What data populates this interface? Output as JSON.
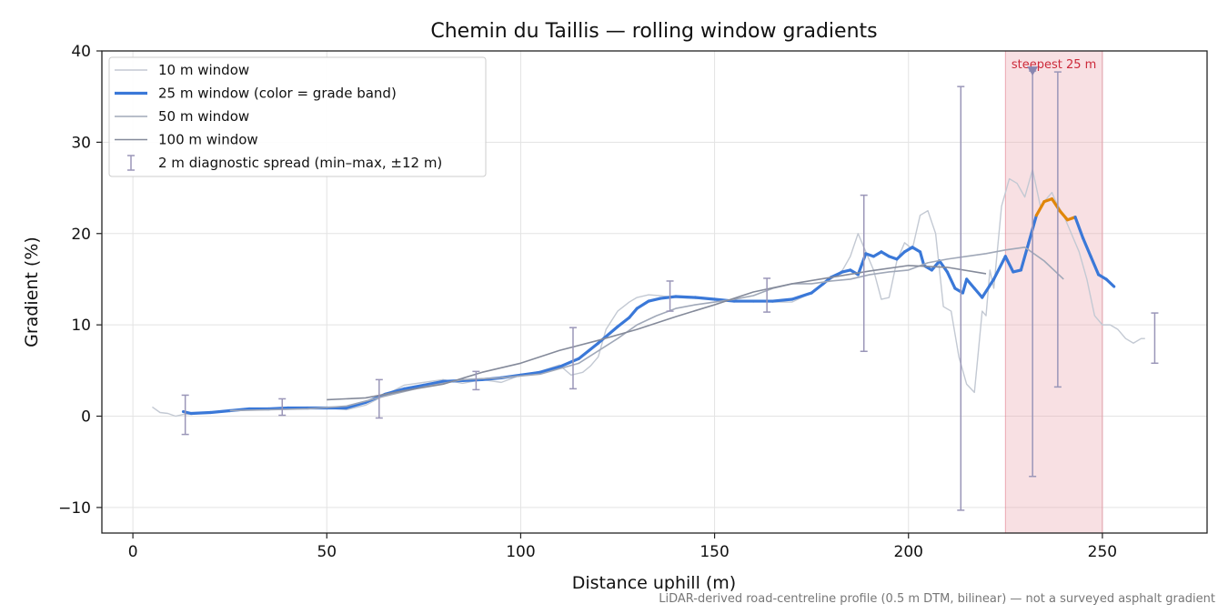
{
  "chart_data": {
    "type": "line",
    "title": "Chemin du Taillis — rolling window gradients",
    "xlabel": "Distance uphill (m)",
    "ylabel": "Gradient (%)",
    "xlim": [
      -8,
      277
    ],
    "ylim": [
      -12.8,
      40
    ],
    "xticks": [
      0,
      50,
      100,
      150,
      200,
      250
    ],
    "yticks": [
      -10,
      0,
      10,
      20,
      30,
      40
    ],
    "xtick_labels": [
      "0",
      "50",
      "100",
      "150",
      "200",
      "250"
    ],
    "ytick_labels": [
      "−10",
      "0",
      "10",
      "20",
      "30",
      "40"
    ],
    "grid": true,
    "legend_position": "top-left",
    "highlight": {
      "x_start": 225,
      "x_end": 250,
      "label": "steepest 25 m",
      "marker_x": 232,
      "marker_y": 37.8,
      "color": "#e8a0a8"
    },
    "series": [
      {
        "name": "10 m window",
        "color": "#c3c9d3",
        "x": [
          5,
          7,
          9,
          11,
          13,
          15,
          20,
          25,
          30,
          35,
          40,
          45,
          50,
          55,
          60,
          65,
          70,
          75,
          80,
          85,
          90,
          95,
          100,
          105,
          110,
          113,
          116,
          118,
          120,
          122,
          125,
          128,
          130,
          133,
          136,
          140,
          145,
          150,
          155,
          160,
          165,
          170,
          175,
          178,
          180,
          183,
          185,
          187,
          189,
          191,
          193,
          195,
          197,
          199,
          201,
          203,
          205,
          207,
          209,
          211,
          213,
          215,
          217,
          218,
          219,
          220,
          221,
          222,
          224,
          226,
          228,
          230,
          232,
          234,
          236,
          237,
          238,
          240,
          242,
          244,
          246,
          248,
          250,
          252,
          254,
          256,
          258,
          260,
          261
        ],
        "values": [
          1.0,
          0.4,
          0.3,
          0,
          0.2,
          0.2,
          0.4,
          0.6,
          0.8,
          0.7,
          0.9,
          0.8,
          0.9,
          0.7,
          1.2,
          2.3,
          3.4,
          3.7,
          4.0,
          3.6,
          4.0,
          3.7,
          4.5,
          4.9,
          5.6,
          4.5,
          4.8,
          5.5,
          6.5,
          9.5,
          11.5,
          12.5,
          13.0,
          13.3,
          13.2,
          13.0,
          12.9,
          12.8,
          12.6,
          12.6,
          12.5,
          12.5,
          13.5,
          14.5,
          15.0,
          16.0,
          17.5,
          20.0,
          18.0,
          16.0,
          12.8,
          13.0,
          17.0,
          19.0,
          18.3,
          22.0,
          22.5,
          20.0,
          12.0,
          11.5,
          6.5,
          3.5,
          2.6,
          7.0,
          11.5,
          11.0,
          16.0,
          14.0,
          23.0,
          26.0,
          25.5,
          24.0,
          27.0,
          23.0,
          24.0,
          24.5,
          23.5,
          22.0,
          20.0,
          18.0,
          15.0,
          11.0,
          10.0,
          10.0,
          9.5,
          8.5,
          8.0,
          8.5,
          8.5
        ]
      },
      {
        "name": "25 m window (color = grade band)",
        "color": "#3a78d8",
        "steep_color": "#e0860a",
        "steep_threshold": 20,
        "x": [
          13,
          15,
          20,
          25,
          30,
          35,
          40,
          45,
          50,
          55,
          60,
          65,
          70,
          75,
          80,
          85,
          90,
          95,
          100,
          105,
          110,
          115,
          120,
          125,
          128,
          130,
          133,
          136,
          140,
          145,
          150,
          155,
          160,
          165,
          170,
          175,
          178,
          180,
          183,
          185,
          187,
          189,
          191,
          193,
          195,
          197,
          199,
          201,
          203,
          204,
          206,
          208,
          210,
          212,
          214,
          215,
          217,
          219,
          222,
          225,
          227,
          229,
          231,
          233,
          235,
          237,
          239,
          241,
          243,
          245,
          247,
          249,
          251,
          253
        ],
        "values": [
          0.5,
          0.3,
          0.4,
          0.6,
          0.8,
          0.8,
          0.9,
          0.9,
          0.9,
          0.9,
          1.5,
          2.4,
          3.0,
          3.4,
          3.8,
          3.9,
          4.0,
          4.2,
          4.5,
          4.8,
          5.4,
          6.3,
          8.0,
          9.8,
          10.8,
          11.8,
          12.6,
          12.9,
          13.1,
          13.0,
          12.8,
          12.6,
          12.6,
          12.6,
          12.8,
          13.5,
          14.5,
          15.2,
          15.8,
          16.0,
          15.5,
          17.8,
          17.5,
          18.0,
          17.5,
          17.2,
          18.0,
          18.5,
          18.0,
          16.5,
          16.0,
          17.0,
          15.8,
          14.0,
          13.5,
          15.0,
          14.0,
          13.0,
          15.0,
          17.5,
          15.8,
          16.0,
          19.0,
          22.0,
          23.5,
          23.8,
          22.5,
          21.5,
          21.8,
          19.5,
          17.5,
          15.5,
          15.0,
          14.2
        ]
      },
      {
        "name": "50 m window",
        "color": "#a0a8b8",
        "x": [
          25,
          35,
          45,
          55,
          65,
          75,
          85,
          95,
          105,
          115,
          125,
          130,
          135,
          140,
          145,
          150,
          155,
          160,
          165,
          170,
          175,
          180,
          185,
          190,
          195,
          200,
          205,
          210,
          215,
          220,
          225,
          230,
          235,
          240
        ],
        "values": [
          0.6,
          0.7,
          0.8,
          1.1,
          2.2,
          3.2,
          4.0,
          4.2,
          4.6,
          5.8,
          8.5,
          10.0,
          11.0,
          11.8,
          12.2,
          12.5,
          12.8,
          13.2,
          14.0,
          14.5,
          14.5,
          14.8,
          15.0,
          15.5,
          15.8,
          16.0,
          16.8,
          17.2,
          17.5,
          17.8,
          18.2,
          18.5,
          17.0,
          15.0
        ]
      },
      {
        "name": "100 m window",
        "color": "#848a9a",
        "x": [
          50,
          60,
          70,
          80,
          90,
          100,
          110,
          120,
          130,
          140,
          150,
          160,
          170,
          180,
          190,
          200,
          210,
          220
        ],
        "values": [
          1.8,
          2.0,
          2.8,
          3.5,
          4.8,
          5.8,
          7.2,
          8.3,
          9.5,
          10.9,
          12.2,
          13.6,
          14.5,
          15.2,
          15.9,
          16.5,
          16.3,
          15.6
        ]
      }
    ],
    "error_bars": {
      "name": "2 m diagnostic spread (min–max, ±12 m)",
      "color": "#9a96b8",
      "x": [
        13.5,
        38.5,
        63.5,
        88.5,
        113.5,
        138.5,
        163.5,
        188.5,
        213.5,
        232,
        238.5,
        263.5
      ],
      "low": [
        -2.0,
        0.1,
        -0.2,
        2.9,
        3.0,
        11.5,
        11.4,
        7.1,
        -10.3,
        -6.6,
        3.2,
        5.8
      ],
      "high": [
        2.3,
        1.9,
        4.0,
        4.9,
        9.7,
        14.8,
        15.1,
        24.2,
        36.1,
        37.8,
        37.7,
        11.3
      ]
    }
  },
  "footnote": "LiDAR-derived road-centreline profile (0.5 m DTM, bilinear) — not a surveyed asphalt gradient"
}
